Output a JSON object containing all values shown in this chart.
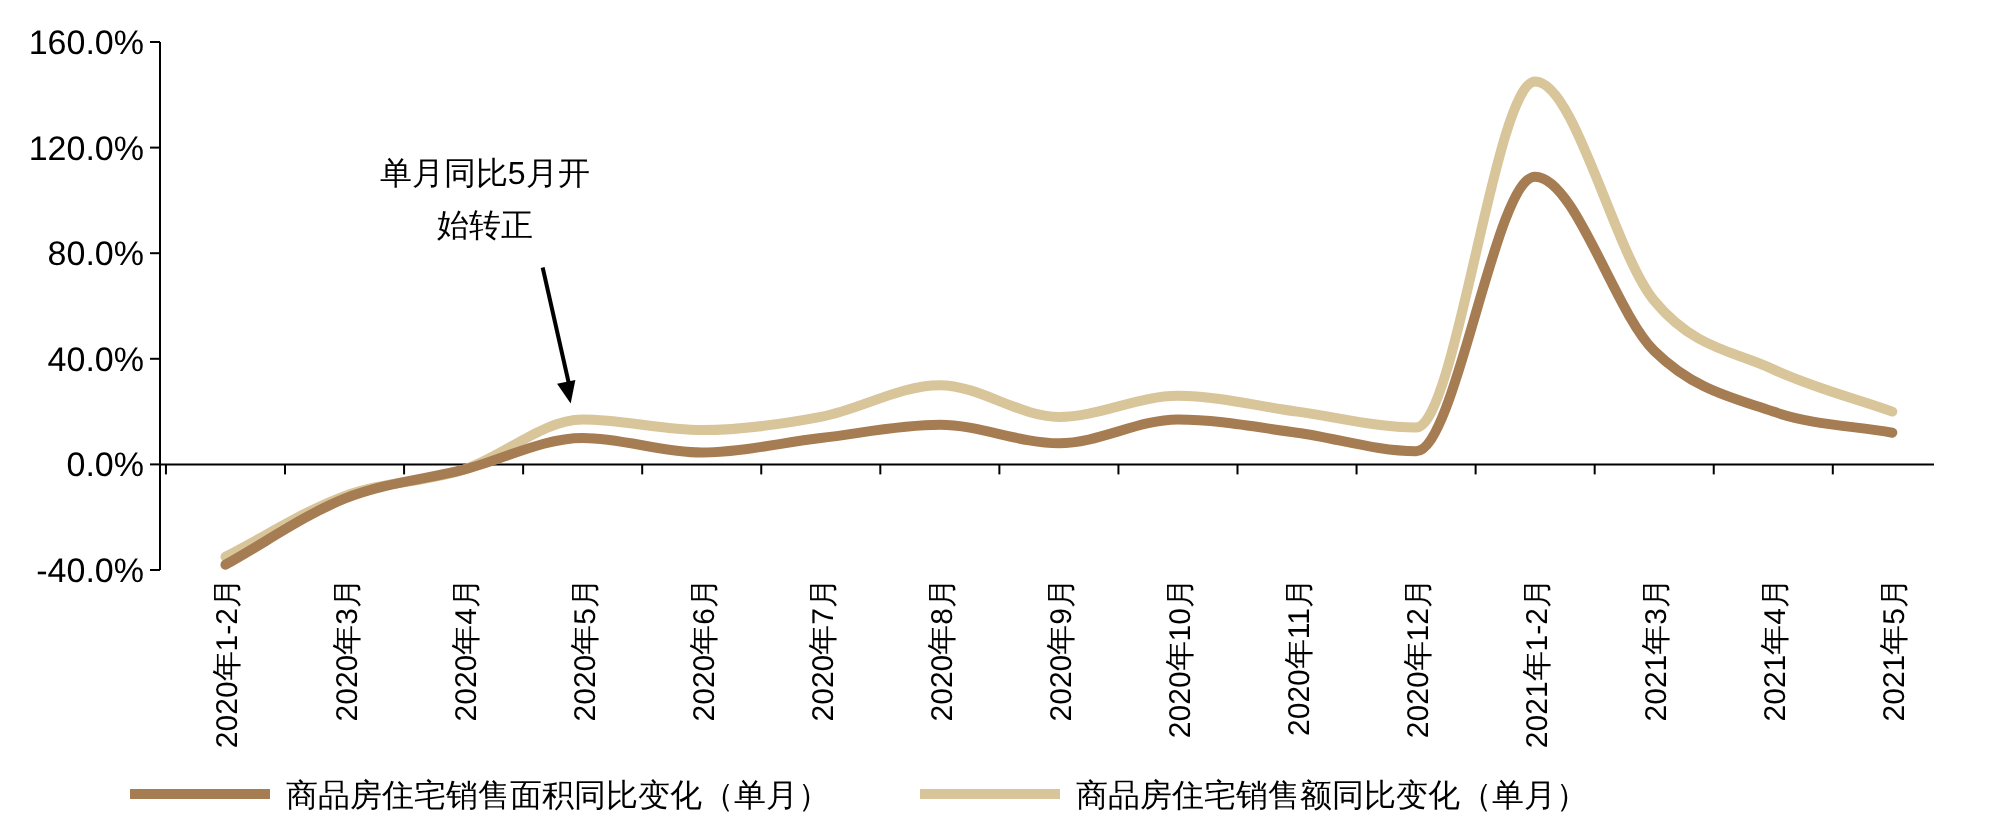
{
  "chart_data": {
    "type": "line",
    "categories": [
      "2020年1-2月",
      "2020年3月",
      "2020年4月",
      "2020年5月",
      "2020年6月",
      "2020年7月",
      "2020年8月",
      "2020年9月",
      "2020年10月",
      "2020年11月",
      "2020年12月",
      "2021年1-2月",
      "2021年3月",
      "2021年4月",
      "2021年5月"
    ],
    "series": [
      {
        "name": "商品房住宅销售面积同比变化（单月）",
        "color": "#a67c52",
        "values": [
          -38,
          -13,
          -2,
          10,
          4.5,
          10,
          15,
          8,
          17,
          12,
          5,
          109,
          43,
          20,
          12
        ]
      },
      {
        "name": "商品房住宅销售额同比变化（单月）",
        "color": "#d8c59a",
        "values": [
          -35,
          -12,
          -2,
          17,
          13,
          18,
          30,
          18,
          26,
          20,
          14,
          145,
          62,
          36,
          20
        ]
      }
    ],
    "ylim": [
      -40,
      160
    ],
    "yticks": [
      {
        "value": -40,
        "label": "-40.0%"
      },
      {
        "value": 0,
        "label": "0.0%"
      },
      {
        "value": 40,
        "label": "40.0%"
      },
      {
        "value": 80,
        "label": "80.0%"
      },
      {
        "value": 120,
        "label": "120.0%"
      },
      {
        "value": 160,
        "label": "160.0%"
      }
    ],
    "annotations": [
      "单月同比5月开始转正"
    ],
    "legend": "bottom",
    "marker": "none",
    "line_style": "solid"
  }
}
